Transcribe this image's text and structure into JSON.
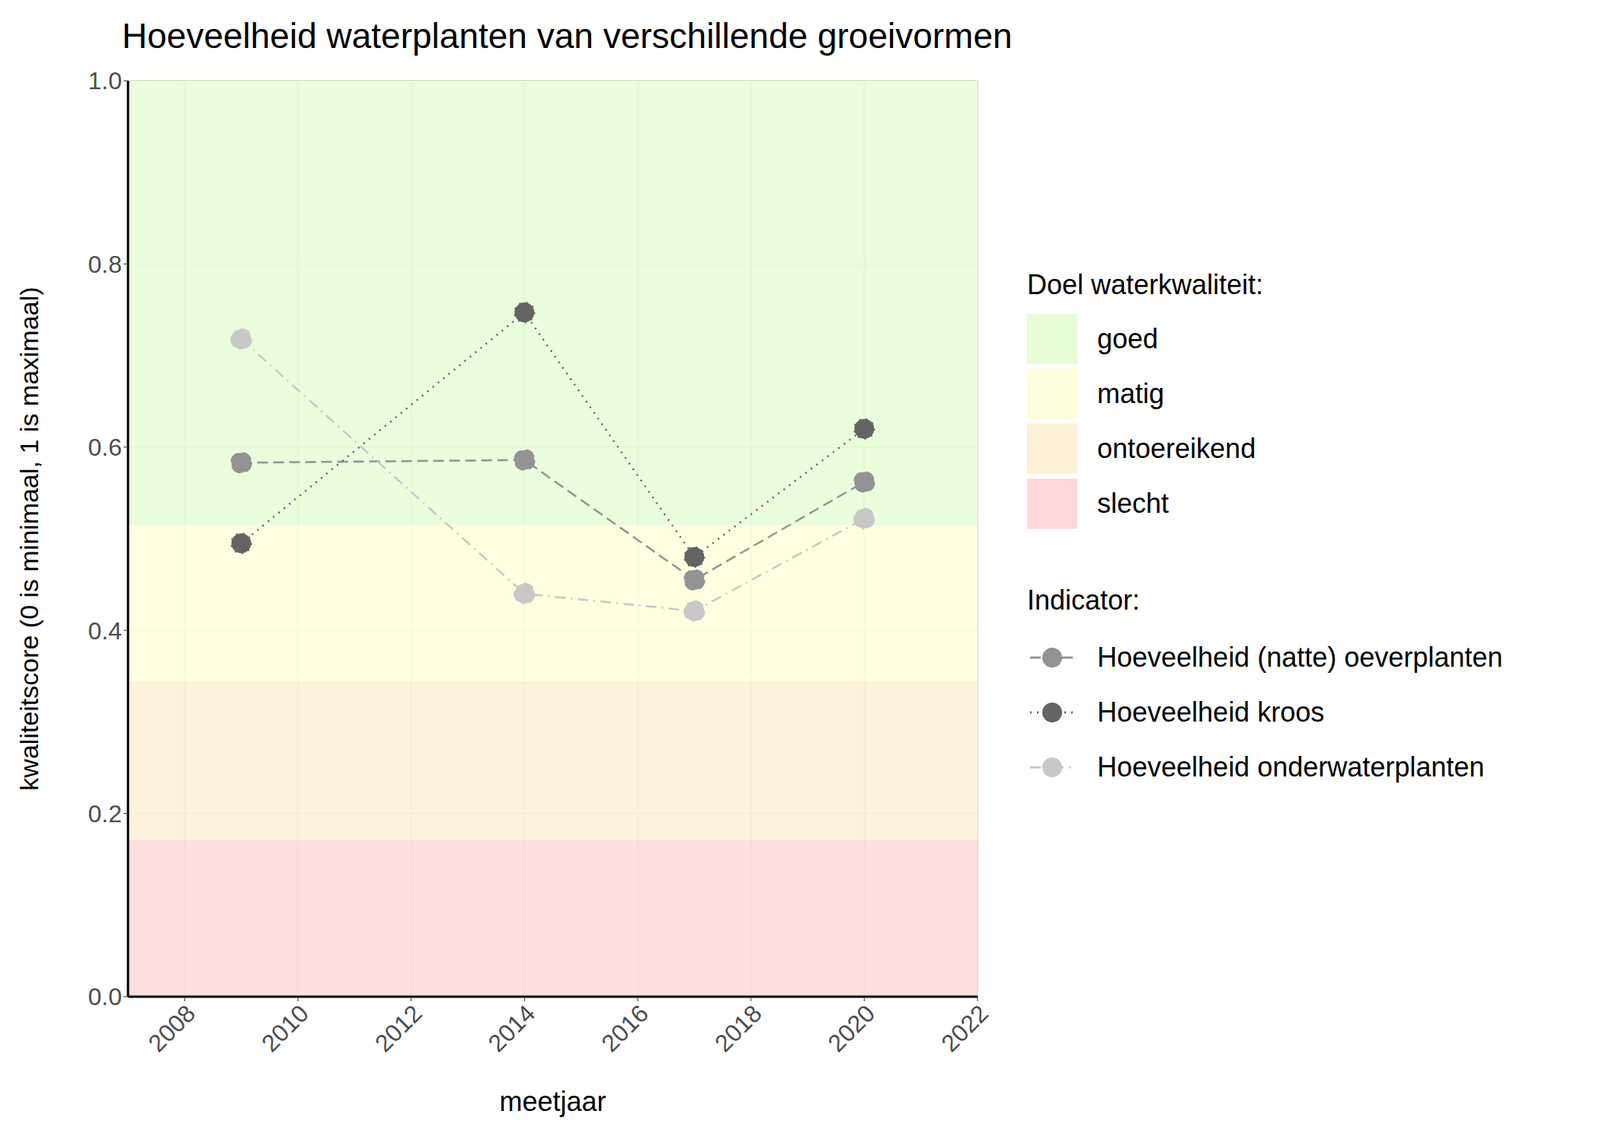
{
  "chart_data": {
    "type": "line",
    "title": "Hoeveelheid waterplanten van verschillende groeivormen",
    "x_label": "meetjaar",
    "y_label": "kwaliteitscore (0 is minimaal, 1 is maximaal)",
    "x": [
      2009,
      2014,
      2017,
      2020
    ],
    "xlim": [
      2007,
      2022
    ],
    "xticks": [
      2008,
      2010,
      2012,
      2014,
      2016,
      2018,
      2020,
      2022
    ],
    "ylim": [
      0,
      1
    ],
    "yticks": [
      {
        "value": 0,
        "label": "0.0"
      },
      0.2,
      0.4,
      0.6,
      0.8,
      {
        "value": 1,
        "label": "1.0"
      }
    ],
    "grid": true,
    "band_legend_title": "Doel waterkwaliteit:",
    "bands": [
      {
        "name": "goed",
        "from": 0.515,
        "to": 1,
        "color": "#e6fdd6"
      },
      {
        "name": "matig",
        "from": 0.344,
        "to": 0.515,
        "color": "#fffedc"
      },
      {
        "name": "ontoereikend",
        "from": 0.171,
        "to": 0.344,
        "color": "#fdf0d6"
      },
      {
        "name": "slecht",
        "from": 0,
        "to": 0.171,
        "color": "#ffd8d8"
      }
    ],
    "series_legend_title": "Indicator:",
    "series": [
      {
        "name": "Hoeveelheid (natte) oeverplanten",
        "color": "#939393",
        "line_style": "dashed",
        "marker": "circle",
        "values": [
          0.583,
          0.586,
          0.455,
          0.562
        ]
      },
      {
        "name": "Hoeveelheid kroos",
        "color": "#646464",
        "line_style": "dotted",
        "marker": "circle",
        "values": [
          0.495,
          0.747,
          0.48,
          0.62
        ]
      },
      {
        "name": "Hoeveelheid onderwaterplanten",
        "color": "#c8c8c8",
        "line_style": "dashdot",
        "marker": "circle",
        "values": [
          0.718,
          0.44,
          0.421,
          0.522
        ]
      }
    ]
  }
}
